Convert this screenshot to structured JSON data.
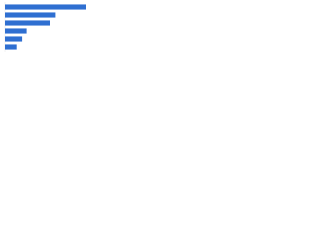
{
  "chart_data": {
    "type": "bar",
    "orientation": "horizontal",
    "categories": [
      null,
      null,
      null,
      null,
      null,
      null
    ],
    "values": [
      90,
      56,
      50,
      24,
      19,
      13
    ],
    "color": "#2f6fd1",
    "xlim": [
      0,
      100
    ]
  }
}
